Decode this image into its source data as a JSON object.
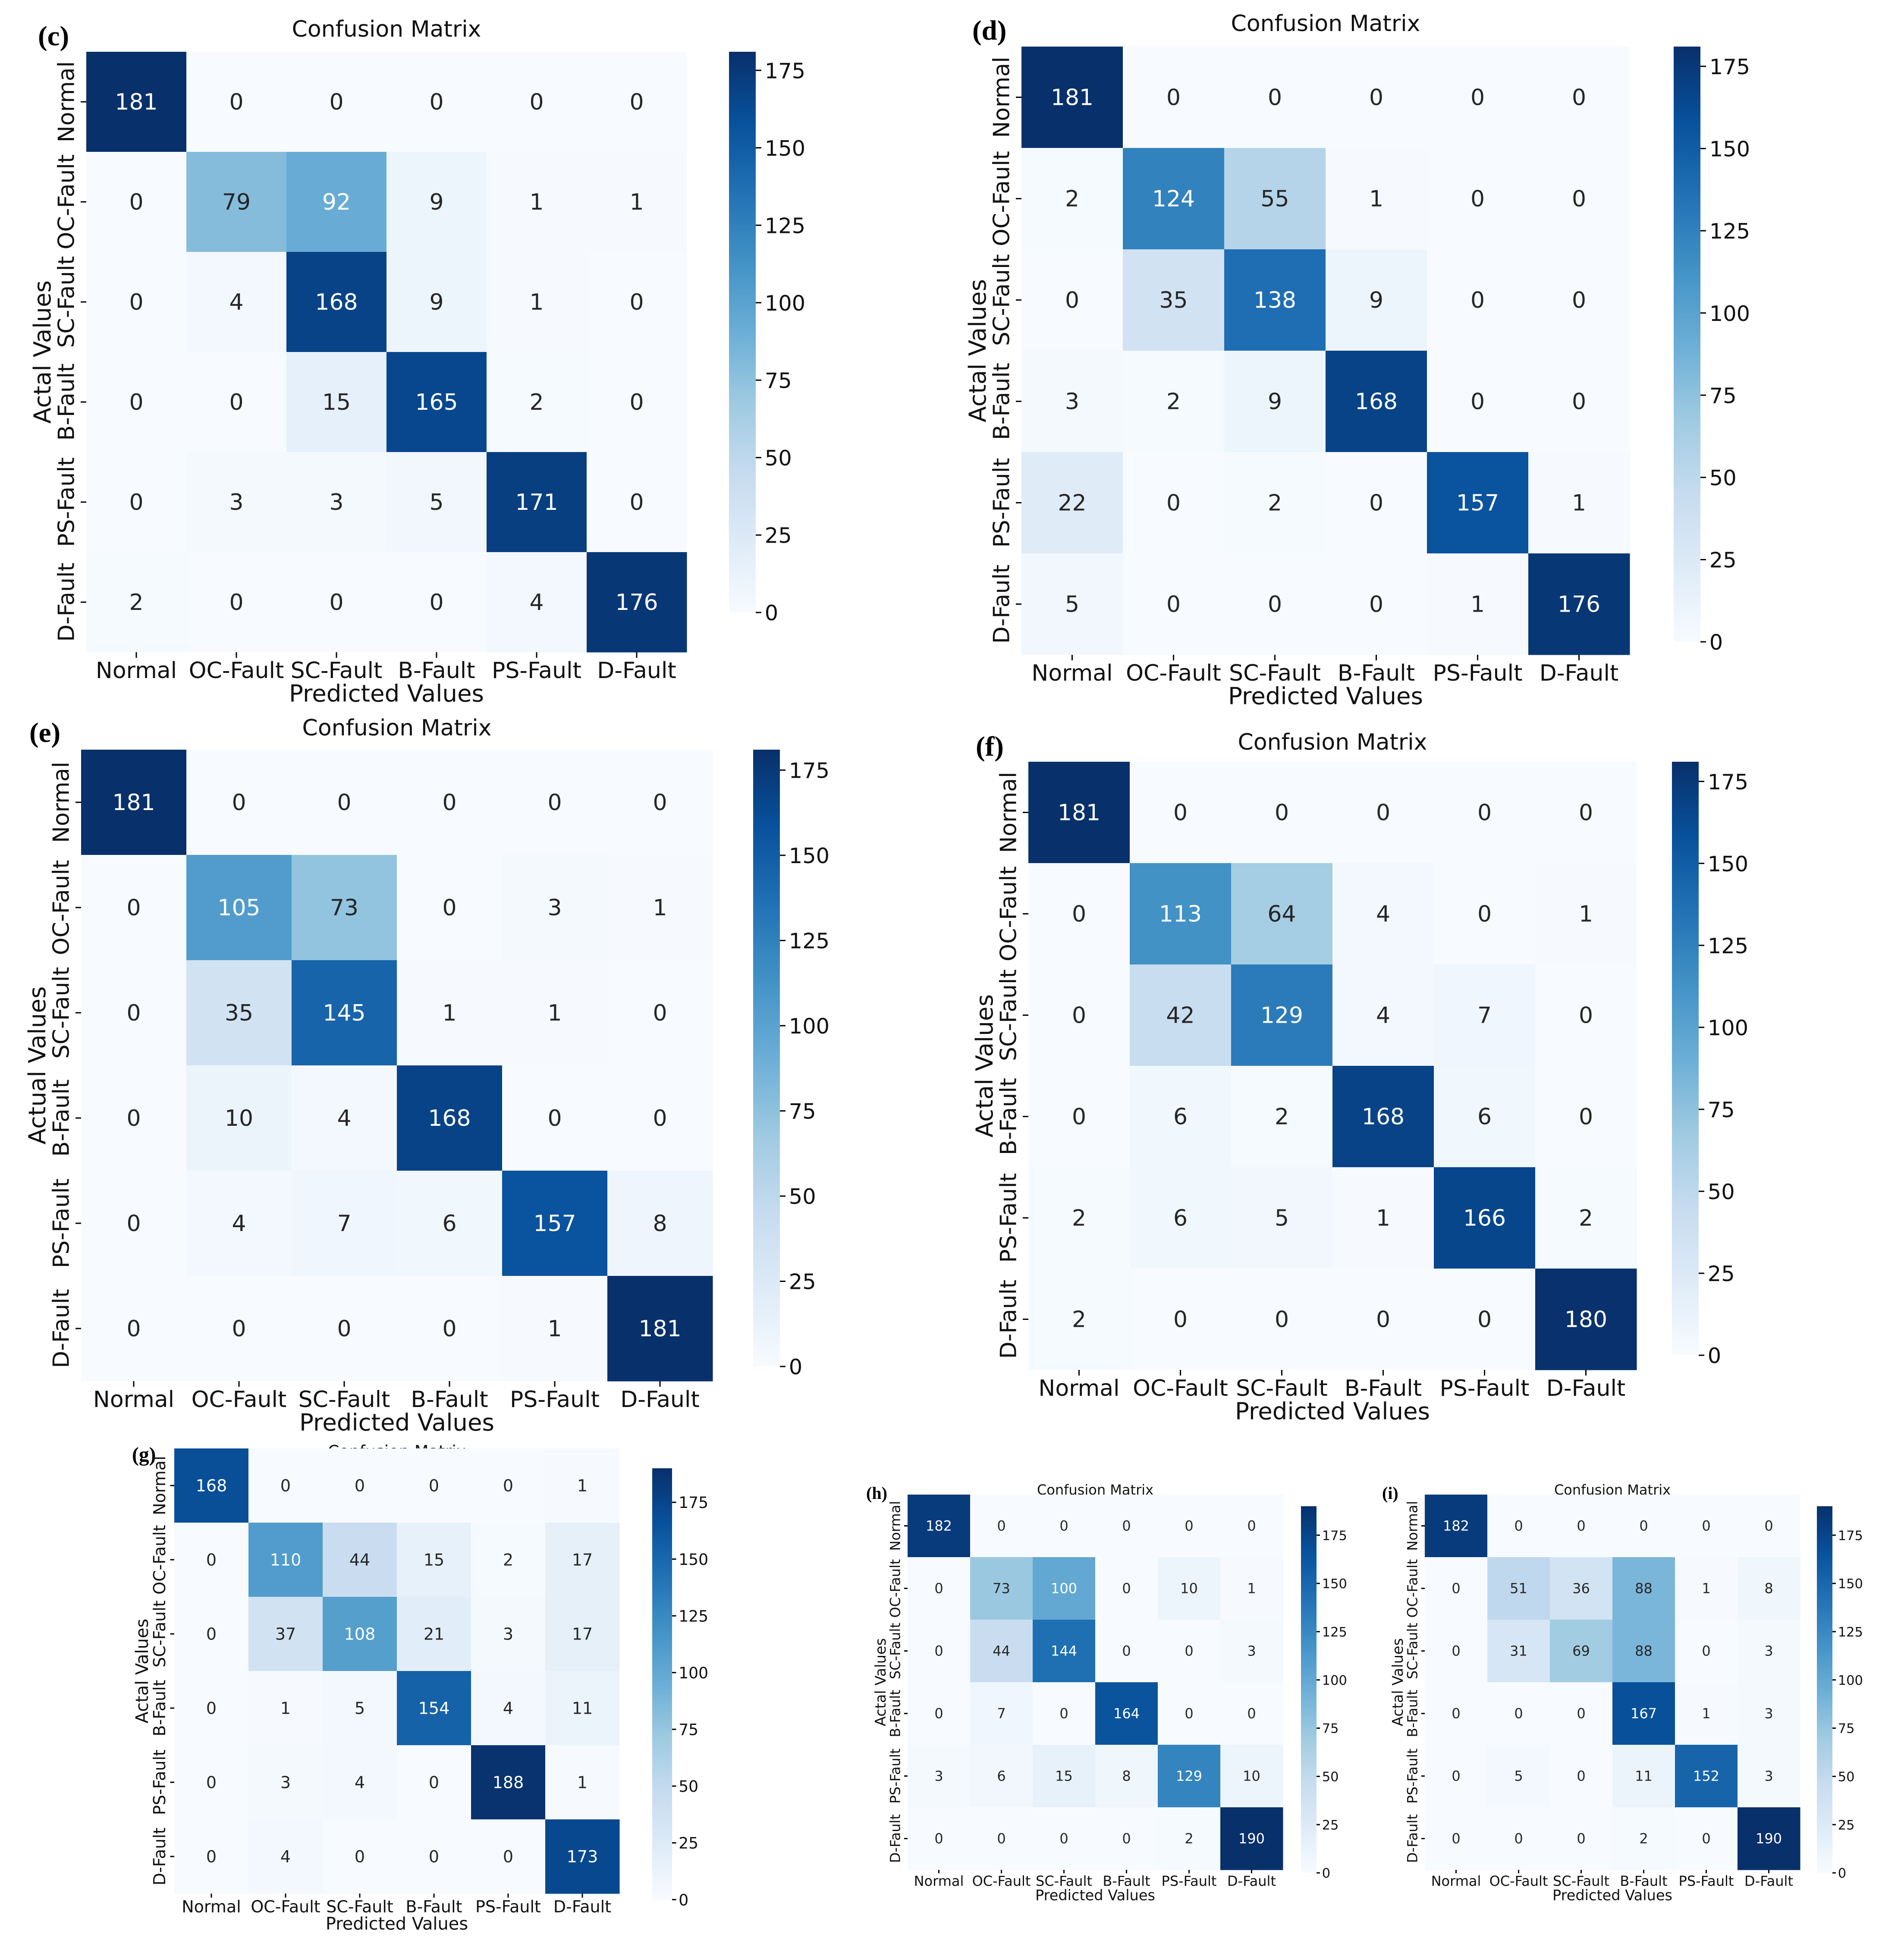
{
  "chart_data": [
    {
      "panel": "(c)",
      "type": "heatmap",
      "title": "Confusion Matrix",
      "xlabel": "Predicted Values",
      "ylabel": "Actal Values",
      "categories": [
        "Normal",
        "OC-Fault",
        "SC-Fault",
        "B-Fault",
        "PS-Fault",
        "D-Fault"
      ],
      "colorbar_max": 181,
      "colorbar_ticks": [
        0,
        25,
        50,
        75,
        100,
        125,
        150,
        175
      ],
      "values": [
        [
          181,
          0,
          0,
          0,
          0,
          0
        ],
        [
          0,
          79,
          92,
          9,
          1,
          1
        ],
        [
          0,
          4,
          168,
          9,
          1,
          0
        ],
        [
          0,
          0,
          15,
          165,
          2,
          0
        ],
        [
          0,
          3,
          3,
          5,
          171,
          0
        ],
        [
          2,
          0,
          0,
          0,
          4,
          176
        ]
      ]
    },
    {
      "panel": "(d)",
      "type": "heatmap",
      "title": "Confusion Matrix",
      "xlabel": "Predicted Values",
      "ylabel": "Actal Values",
      "categories": [
        "Normal",
        "OC-Fault",
        "SC-Fault",
        "B-Fault",
        "PS-Fault",
        "D-Fault"
      ],
      "colorbar_max": 181,
      "colorbar_ticks": [
        0,
        25,
        50,
        75,
        100,
        125,
        150,
        175
      ],
      "values": [
        [
          181,
          0,
          0,
          0,
          0,
          0
        ],
        [
          2,
          124,
          55,
          1,
          0,
          0
        ],
        [
          0,
          35,
          138,
          9,
          0,
          0
        ],
        [
          3,
          2,
          9,
          168,
          0,
          0
        ],
        [
          22,
          0,
          2,
          0,
          157,
          1
        ],
        [
          5,
          0,
          0,
          0,
          1,
          176
        ]
      ]
    },
    {
      "panel": "(e)",
      "type": "heatmap",
      "title": "Confusion Matrix",
      "xlabel": "Predicted Values",
      "ylabel": "Actual Values",
      "categories": [
        "Normal",
        "OC-Fault",
        "SC-Fault",
        "B-Fault",
        "PS-Fault",
        "D-Fault"
      ],
      "colorbar_max": 181,
      "colorbar_ticks": [
        0,
        25,
        50,
        75,
        100,
        125,
        150,
        175
      ],
      "values": [
        [
          181,
          0,
          0,
          0,
          0,
          0
        ],
        [
          0,
          105,
          73,
          0,
          3,
          1
        ],
        [
          0,
          35,
          145,
          1,
          1,
          0
        ],
        [
          0,
          10,
          4,
          168,
          0,
          0
        ],
        [
          0,
          4,
          7,
          6,
          157,
          8
        ],
        [
          0,
          0,
          0,
          0,
          1,
          181
        ]
      ]
    },
    {
      "panel": "(f)",
      "type": "heatmap",
      "title": "Confusion Matrix",
      "xlabel": "Predicted Values",
      "ylabel": "Actal Values",
      "categories": [
        "Normal",
        "OC-Fault",
        "SC-Fault",
        "B-Fault",
        "PS-Fault",
        "D-Fault"
      ],
      "colorbar_max": 181,
      "colorbar_ticks": [
        0,
        25,
        50,
        75,
        100,
        125,
        150,
        175
      ],
      "values": [
        [
          181,
          0,
          0,
          0,
          0,
          0
        ],
        [
          0,
          113,
          64,
          4,
          0,
          1
        ],
        [
          0,
          42,
          129,
          4,
          7,
          0
        ],
        [
          0,
          6,
          2,
          168,
          6,
          0
        ],
        [
          2,
          6,
          5,
          1,
          166,
          2
        ],
        [
          2,
          0,
          0,
          0,
          0,
          180
        ]
      ]
    },
    {
      "panel": "(g)",
      "type": "heatmap",
      "title": "Confusion Matrix",
      "xlabel": "Predicted Values",
      "ylabel": "Actal Values",
      "categories": [
        "Normal",
        "OC-Fault",
        "SC-Fault",
        "B-Fault",
        "PS-Fault",
        "D-Fault"
      ],
      "colorbar_max": 190,
      "colorbar_ticks": [
        0,
        25,
        50,
        75,
        100,
        125,
        150,
        175
      ],
      "values": [
        [
          168,
          0,
          0,
          0,
          0,
          1
        ],
        [
          0,
          110,
          44,
          15,
          2,
          17
        ],
        [
          0,
          37,
          108,
          21,
          3,
          17
        ],
        [
          0,
          1,
          5,
          154,
          4,
          11
        ],
        [
          0,
          3,
          4,
          0,
          188,
          1
        ],
        [
          0,
          4,
          0,
          0,
          0,
          173
        ]
      ]
    },
    {
      "panel": "(h)",
      "type": "heatmap",
      "title": "Confusion Matrix",
      "xlabel": "Predicted Values",
      "ylabel": "Actal Values",
      "categories": [
        "Normal",
        "OC-Fault",
        "SC-Fault",
        "B-Fault",
        "PS-Fault",
        "D-Fault"
      ],
      "colorbar_max": 190,
      "colorbar_ticks": [
        0,
        25,
        50,
        75,
        100,
        125,
        150,
        175
      ],
      "values": [
        [
          182,
          0,
          0,
          0,
          0,
          0
        ],
        [
          0,
          73,
          100,
          0,
          10,
          1
        ],
        [
          0,
          44,
          144,
          0,
          0,
          3
        ],
        [
          0,
          7,
          0,
          164,
          0,
          0
        ],
        [
          3,
          6,
          15,
          8,
          129,
          10
        ],
        [
          0,
          0,
          0,
          0,
          2,
          190
        ]
      ]
    },
    {
      "panel": "(i)",
      "type": "heatmap",
      "title": "Confusion Matrix",
      "xlabel": "Predicted Values",
      "ylabel": "Actal Values",
      "categories": [
        "Normal",
        "OC-Fault",
        "SC-Fault",
        "B-Fault",
        "PS-Fault",
        "D-Fault"
      ],
      "colorbar_max": 190,
      "colorbar_ticks": [
        0,
        25,
        50,
        75,
        100,
        125,
        150,
        175
      ],
      "values": [
        [
          182,
          0,
          0,
          0,
          0,
          0
        ],
        [
          0,
          51,
          36,
          88,
          1,
          8
        ],
        [
          0,
          31,
          69,
          88,
          0,
          3
        ],
        [
          0,
          0,
          0,
          167,
          1,
          3
        ],
        [
          0,
          5,
          0,
          11,
          152,
          3
        ],
        [
          0,
          0,
          0,
          2,
          0,
          190
        ]
      ]
    }
  ]
}
